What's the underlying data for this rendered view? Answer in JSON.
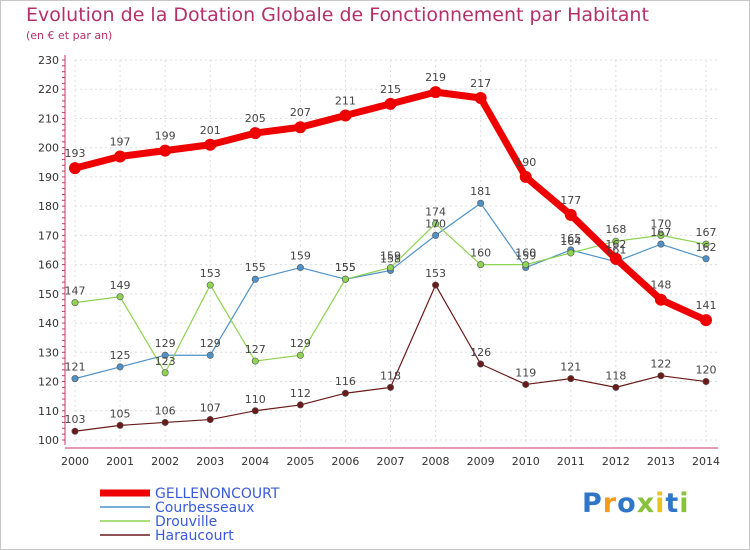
{
  "chart_data": {
    "type": "line",
    "title": "Evolution de la Dotation Globale de Fonctionnement par Habitant",
    "subtitle": "(en € et par an)",
    "x": [
      "2000",
      "2001",
      "2002",
      "2003",
      "2004",
      "2005",
      "2006",
      "2007",
      "2008",
      "2009",
      "2010",
      "2011",
      "2012",
      "2013",
      "2014"
    ],
    "ylim": [
      100,
      230
    ],
    "yticks": [
      100,
      110,
      120,
      130,
      140,
      150,
      160,
      170,
      180,
      190,
      200,
      210,
      220,
      230
    ],
    "grid": true,
    "legend_position": "bottom-left",
    "series": [
      {
        "name": "GELLENONCOURT",
        "color": "#ee0000",
        "values": [
          193,
          197,
          199,
          201,
          205,
          207,
          211,
          215,
          219,
          217,
          190,
          177,
          162,
          148,
          141
        ]
      },
      {
        "name": "Courbesseaux",
        "color": "#4f92c8",
        "values": [
          121,
          125,
          129,
          129,
          155,
          159,
          155,
          158,
          170,
          181,
          159,
          165,
          161,
          167,
          162
        ]
      },
      {
        "name": "Drouville",
        "color": "#8fd352",
        "values": [
          147,
          149,
          123,
          153,
          127,
          129,
          155,
          159,
          174,
          160,
          160,
          164,
          168,
          170,
          167
        ]
      },
      {
        "name": "Haraucourt",
        "color": "#6b1a1a",
        "values": [
          103,
          105,
          106,
          107,
          110,
          112,
          116,
          118,
          153,
          126,
          119,
          121,
          118,
          122,
          120
        ]
      }
    ]
  },
  "logo": {
    "text": "Proxiti",
    "letters": [
      "P",
      "r",
      "o",
      "x",
      "i",
      "t",
      "i"
    ],
    "colors": [
      "#2f76c7",
      "#f39b1d",
      "#2f76c7",
      "#89c23b",
      "#e8c51a",
      "#2f76c7",
      "#89c23b"
    ]
  }
}
